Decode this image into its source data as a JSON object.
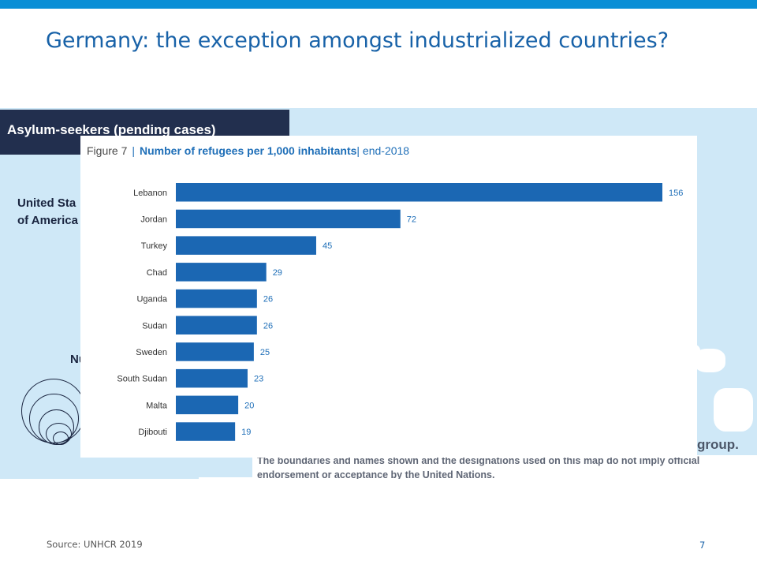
{
  "slide": {
    "title": "Germany: the exception amongst industrialized countries?",
    "source": "Source: UNHCR 2019",
    "page_number": "7",
    "accent_color": "#0a8fd6",
    "title_color": "#1862a8"
  },
  "background_map": {
    "header": "Asylum-seekers (pending cases)",
    "country_line1": "United Sta",
    "country_line2": "of America",
    "legend_fragment": "Nu",
    "group_fragment": "group.",
    "disclaimer_line1": "The boundaries and names shown and the designations used on this map do not imply official",
    "disclaimer_line2": "endorsement or acceptance by the United Nations."
  },
  "figure": {
    "label": "Figure 7",
    "separator": "|",
    "title": "Number of refugees per 1,000 inhabitants",
    "subtitle": "| end-2018"
  },
  "chart_data": {
    "type": "bar",
    "orientation": "horizontal",
    "categories": [
      "Lebanon",
      "Jordan",
      "Turkey",
      "Chad",
      "Uganda",
      "Sudan",
      "Sweden",
      "South Sudan",
      "Malta",
      "Djibouti"
    ],
    "values": [
      156,
      72,
      45,
      29,
      26,
      26,
      25,
      23,
      20,
      19
    ],
    "title": "Number of refugees per 1,000 inhabitants",
    "xlabel": "",
    "ylabel": "",
    "xlim": [
      0,
      156
    ],
    "bar_color": "#1b67b3",
    "label_color": "#1f6fb8",
    "grid": false,
    "legend": "none"
  }
}
